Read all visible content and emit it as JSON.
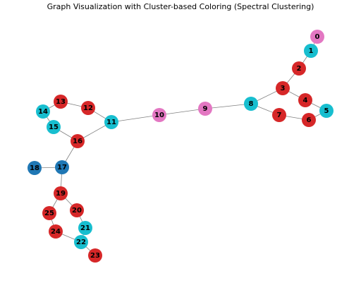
{
  "title": "Graph Visualization with Cluster-based Coloring (Spectral Clustering)",
  "cluster_colors": {
    "red": "#d62728",
    "cyan": "#17becf",
    "pink": "#e377c2",
    "blue": "#1f77b4"
  },
  "graph": {
    "nodes": [
      {
        "id": "0",
        "label": "0",
        "cluster": "pink"
      },
      {
        "id": "1",
        "label": "1",
        "cluster": "cyan"
      },
      {
        "id": "2",
        "label": "2",
        "cluster": "red"
      },
      {
        "id": "3",
        "label": "3",
        "cluster": "red"
      },
      {
        "id": "4",
        "label": "4",
        "cluster": "red"
      },
      {
        "id": "5",
        "label": "5",
        "cluster": "cyan"
      },
      {
        "id": "6",
        "label": "6",
        "cluster": "red"
      },
      {
        "id": "7",
        "label": "7",
        "cluster": "red"
      },
      {
        "id": "8",
        "label": "8",
        "cluster": "cyan"
      },
      {
        "id": "9",
        "label": "9",
        "cluster": "pink"
      },
      {
        "id": "10",
        "label": "10",
        "cluster": "pink"
      },
      {
        "id": "11",
        "label": "11",
        "cluster": "cyan"
      },
      {
        "id": "12",
        "label": "12",
        "cluster": "red"
      },
      {
        "id": "13",
        "label": "13",
        "cluster": "red"
      },
      {
        "id": "14",
        "label": "14",
        "cluster": "cyan"
      },
      {
        "id": "15",
        "label": "15",
        "cluster": "cyan"
      },
      {
        "id": "16",
        "label": "16",
        "cluster": "red"
      },
      {
        "id": "17",
        "label": "17",
        "cluster": "blue"
      },
      {
        "id": "18",
        "label": "18",
        "cluster": "blue"
      },
      {
        "id": "19",
        "label": "19",
        "cluster": "red"
      },
      {
        "id": "20",
        "label": "20",
        "cluster": "red"
      },
      {
        "id": "21",
        "label": "21",
        "cluster": "cyan"
      },
      {
        "id": "22",
        "label": "22",
        "cluster": "cyan"
      },
      {
        "id": "23",
        "label": "23",
        "cluster": "red"
      },
      {
        "id": "24",
        "label": "24",
        "cluster": "red"
      },
      {
        "id": "25",
        "label": "25",
        "cluster": "red"
      }
    ],
    "edges": [
      [
        "0",
        "1"
      ],
      [
        "1",
        "2"
      ],
      [
        "2",
        "3"
      ],
      [
        "3",
        "4"
      ],
      [
        "4",
        "5"
      ],
      [
        "3",
        "8"
      ],
      [
        "8",
        "7"
      ],
      [
        "7",
        "6"
      ],
      [
        "6",
        "5"
      ],
      [
        "8",
        "9"
      ],
      [
        "9",
        "10"
      ],
      [
        "10",
        "11"
      ],
      [
        "11",
        "12"
      ],
      [
        "12",
        "13"
      ],
      [
        "13",
        "14"
      ],
      [
        "14",
        "15"
      ],
      [
        "15",
        "16"
      ],
      [
        "16",
        "11"
      ],
      [
        "16",
        "17"
      ],
      [
        "17",
        "18"
      ],
      [
        "17",
        "19"
      ],
      [
        "19",
        "20"
      ],
      [
        "20",
        "21"
      ],
      [
        "21",
        "22"
      ],
      [
        "22",
        "23"
      ],
      [
        "22",
        "24"
      ],
      [
        "24",
        "25"
      ],
      [
        "25",
        "19"
      ]
    ]
  }
}
